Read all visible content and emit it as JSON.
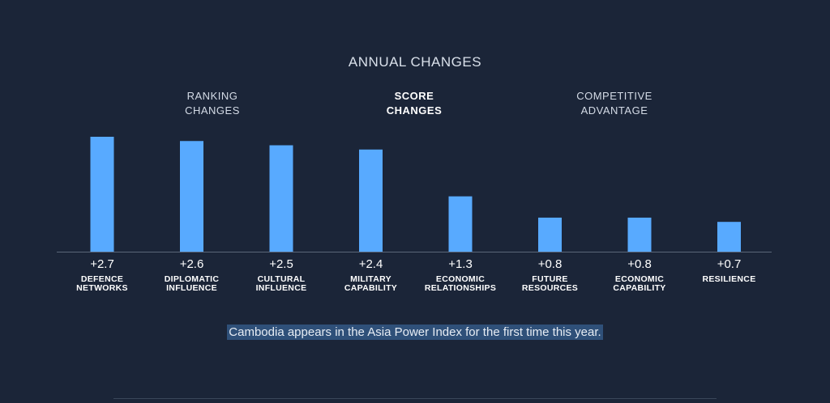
{
  "header": {
    "title": "ANNUAL CHANGES"
  },
  "tabs": [
    {
      "label": "RANKING\nCHANGES",
      "active": false
    },
    {
      "label": "SCORE\nCHANGES",
      "active": true
    },
    {
      "label": "COMPETITIVE\nADVANTAGE",
      "active": false
    }
  ],
  "chart_data": {
    "type": "bar",
    "categories": [
      [
        "DEFENCE",
        "NETWORKS"
      ],
      [
        "DIPLOMATIC",
        "INFLUENCE"
      ],
      [
        "CULTURAL",
        "INFLUENCE"
      ],
      [
        "MILITARY",
        "CAPABILITY"
      ],
      [
        "ECONOMIC",
        "RELATIONSHIPS"
      ],
      [
        "FUTURE",
        "RESOURCES"
      ],
      [
        "ECONOMIC",
        "CAPABILITY"
      ],
      [
        "RESILIENCE"
      ]
    ],
    "values": [
      2.7,
      2.6,
      2.5,
      2.4,
      1.3,
      0.8,
      0.8,
      0.7
    ],
    "value_labels": [
      "+2.7",
      "+2.6",
      "+2.5",
      "+2.4",
      "+1.3",
      "+0.8",
      "+0.8",
      "+0.7"
    ],
    "title": "ANNUAL CHANGES",
    "ylim": [
      0,
      2.7
    ],
    "grid": false,
    "bar_color": "#58aaff"
  },
  "footer": {
    "note": "Cambodia appears in the Asia Power Index for the first time this year."
  },
  "colors": {
    "background": "#1b2538",
    "bar": "#58aaff",
    "note_highlight": "#2f5079",
    "axis": "#5a6678"
  }
}
